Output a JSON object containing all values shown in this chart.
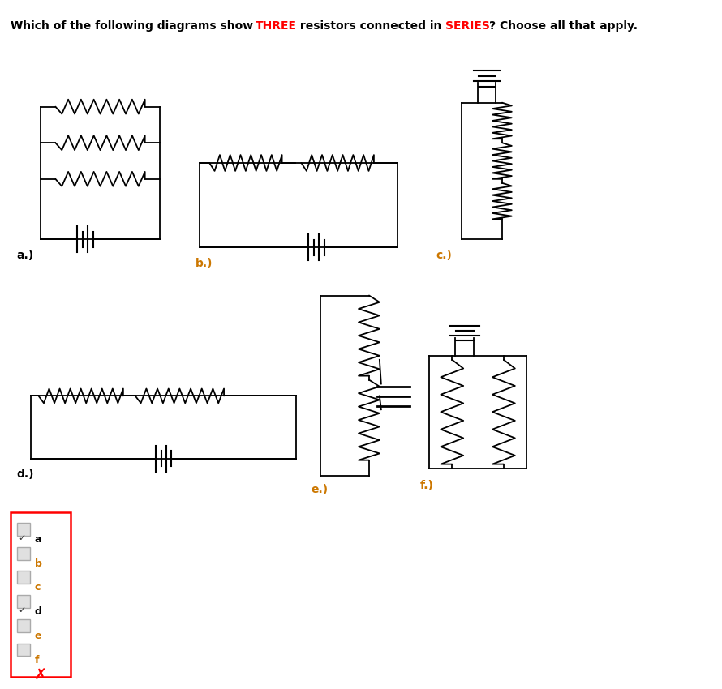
{
  "bg_color": "#ffffff",
  "title_texts": [
    [
      "Which of the following diagrams show ",
      "black"
    ],
    [
      "THREE",
      "red"
    ],
    [
      " resistors connected in ",
      "black"
    ],
    [
      "SERIES",
      "red"
    ],
    [
      "? Choose all that apply.",
      "black"
    ]
  ],
  "label_color_orange": "#CC7700",
  "label_color_black": "#000000"
}
